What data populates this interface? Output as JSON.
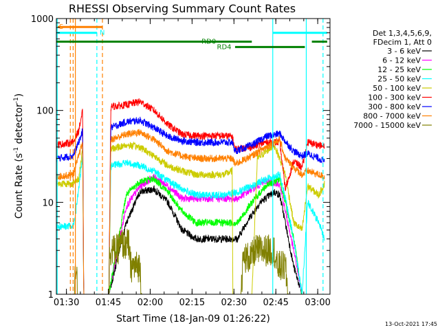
{
  "chart_data": {
    "type": "line",
    "title": "RHESSI Observing Summary Count Rates",
    "xlabel": "Start Time (18-Jan-09 01:26:22)",
    "ylabel_main": "Count Rate (s",
    "ylabel_sup1": "-1",
    "ylabel_mid": " detector",
    "ylabel_sup2": "-1",
    "ylabel_end": ")",
    "timestamp": "13-Oct-2021 17:45",
    "x_unit": "minutes after 01:26:22",
    "xlim": [
      0,
      98
    ],
    "ylim": [
      1,
      1000
    ],
    "yscale": "log",
    "x_ticks": [
      {
        "label": "01:30",
        "value": 3.6
      },
      {
        "label": "01:45",
        "value": 18.6
      },
      {
        "label": "02:00",
        "value": 33.6
      },
      {
        "label": "02:15",
        "value": 48.6
      },
      {
        "label": "02:30",
        "value": 63.6
      },
      {
        "label": "02:45",
        "value": 78.6
      },
      {
        "label": "03:00",
        "value": 93.6
      }
    ],
    "y_ticks": [
      {
        "label": "1",
        "value": 1
      },
      {
        "label": "10",
        "value": 10
      },
      {
        "label": "100",
        "value": 100
      },
      {
        "label": "1000",
        "value": 1000
      }
    ],
    "legend_header": [
      "Det 1,3,4,5,6,9,",
      "FDecim 1, Att 0"
    ],
    "series": [
      {
        "name": "3 - 6 keV",
        "color": "#000000",
        "points": [
          [
            5,
            1
          ],
          [
            6,
            1
          ],
          [
            18,
            1
          ],
          [
            18.8,
            1
          ],
          [
            25,
            6
          ],
          [
            30,
            13
          ],
          [
            35,
            14
          ],
          [
            40,
            10
          ],
          [
            45,
            5
          ],
          [
            50,
            4
          ],
          [
            55,
            4
          ],
          [
            60,
            4
          ],
          [
            65,
            4
          ],
          [
            68,
            6
          ],
          [
            73,
            10
          ],
          [
            78,
            13
          ],
          [
            80,
            12
          ],
          [
            82,
            6
          ],
          [
            85,
            2
          ],
          [
            88,
            1
          ],
          [
            92,
            1
          ],
          [
            96,
            1
          ]
        ]
      },
      {
        "name": "6 - 12 keV",
        "color": "#ff00ff",
        "points": [
          [
            5,
            1
          ],
          [
            6,
            1
          ],
          [
            18,
            1
          ],
          [
            18.8,
            1
          ],
          [
            25,
            9
          ],
          [
            30,
            15
          ],
          [
            35,
            19
          ],
          [
            40,
            15
          ],
          [
            45,
            11
          ],
          [
            50,
            11
          ],
          [
            55,
            11
          ],
          [
            60,
            11
          ],
          [
            65,
            11
          ],
          [
            70,
            14
          ],
          [
            75,
            17
          ],
          [
            80,
            16
          ],
          [
            82,
            8
          ],
          [
            85,
            3
          ],
          [
            88,
            1
          ],
          [
            92,
            1
          ],
          [
            96,
            1
          ]
        ]
      },
      {
        "name": "12 - 25 keV",
        "color": "#00ff00",
        "points": [
          [
            5,
            1
          ],
          [
            6,
            1
          ],
          [
            18,
            1
          ],
          [
            18.8,
            1
          ],
          [
            25,
            12
          ],
          [
            30,
            17
          ],
          [
            35,
            18
          ],
          [
            40,
            13
          ],
          [
            45,
            8
          ],
          [
            50,
            6
          ],
          [
            55,
            6
          ],
          [
            60,
            6
          ],
          [
            65,
            6
          ],
          [
            70,
            10
          ],
          [
            75,
            15
          ],
          [
            80,
            18
          ],
          [
            82,
            10
          ],
          [
            85,
            4
          ],
          [
            88,
            1
          ],
          [
            92,
            1
          ],
          [
            96,
            1
          ]
        ]
      },
      {
        "name": "25 - 50 keV",
        "color": "#00ffff",
        "points": [
          [
            0,
            5.5
          ],
          [
            6,
            5.5
          ],
          [
            7,
            8
          ],
          [
            8.6,
            20
          ],
          [
            9.4,
            30
          ],
          [
            9.8,
            1
          ],
          [
            18.8,
            1
          ],
          [
            19.5,
            25
          ],
          [
            25,
            27
          ],
          [
            30,
            25
          ],
          [
            35,
            22
          ],
          [
            40,
            17
          ],
          [
            45,
            14
          ],
          [
            50,
            12
          ],
          [
            55,
            12
          ],
          [
            60,
            12
          ],
          [
            65,
            13
          ],
          [
            70,
            15
          ],
          [
            75,
            18
          ],
          [
            80,
            20
          ],
          [
            82,
            11
          ],
          [
            85,
            4
          ],
          [
            88,
            1
          ],
          [
            90,
            10
          ],
          [
            94,
            6
          ],
          [
            96,
            4
          ]
        ]
      },
      {
        "name": "50 - 100 keV",
        "color": "#cccc00",
        "points": [
          [
            0,
            16
          ],
          [
            6,
            16
          ],
          [
            8,
            18
          ],
          [
            9.4,
            40
          ],
          [
            9.8,
            1
          ],
          [
            18.8,
            1
          ],
          [
            19.5,
            38
          ],
          [
            25,
            42
          ],
          [
            30,
            40
          ],
          [
            35,
            32
          ],
          [
            40,
            25
          ],
          [
            45,
            22
          ],
          [
            50,
            20
          ],
          [
            55,
            20
          ],
          [
            60,
            20
          ],
          [
            63,
            22
          ],
          [
            63.2,
            1
          ],
          [
            70,
            1
          ],
          [
            72,
            30
          ],
          [
            78,
            42
          ],
          [
            80,
            30
          ],
          [
            82,
            20
          ],
          [
            85,
            6
          ],
          [
            88,
            5
          ],
          [
            90,
            15
          ],
          [
            94,
            12
          ],
          [
            96,
            16
          ]
        ]
      },
      {
        "name": "100 - 300 keV",
        "color": "#ff0000",
        "points": [
          [
            0,
            42
          ],
          [
            6,
            45
          ],
          [
            8,
            60
          ],
          [
            9.4,
            100
          ],
          [
            9.8,
            1
          ],
          [
            18.8,
            1
          ],
          [
            19.5,
            110
          ],
          [
            25,
            115
          ],
          [
            30,
            125
          ],
          [
            35,
            100
          ],
          [
            40,
            70
          ],
          [
            45,
            55
          ],
          [
            50,
            53
          ],
          [
            55,
            53
          ],
          [
            60,
            53
          ],
          [
            63,
            52
          ],
          [
            64,
            38
          ],
          [
            70,
            40
          ],
          [
            75,
            45
          ],
          [
            80,
            45
          ],
          [
            82,
            14
          ],
          [
            85,
            28
          ],
          [
            88,
            24
          ],
          [
            90,
            45
          ],
          [
            94,
            42
          ],
          [
            96,
            40
          ]
        ]
      },
      {
        "name": "300 - 800 keV",
        "color": "#0000ff",
        "points": [
          [
            0,
            30
          ],
          [
            6,
            32
          ],
          [
            8,
            45
          ],
          [
            9.4,
            60
          ],
          [
            9.8,
            1
          ],
          [
            18.8,
            1
          ],
          [
            19.5,
            65
          ],
          [
            25,
            75
          ],
          [
            30,
            78
          ],
          [
            35,
            65
          ],
          [
            40,
            52
          ],
          [
            45,
            47
          ],
          [
            50,
            45
          ],
          [
            55,
            45
          ],
          [
            60,
            45
          ],
          [
            63,
            45
          ],
          [
            64,
            36
          ],
          [
            70,
            42
          ],
          [
            75,
            52
          ],
          [
            80,
            56
          ],
          [
            82,
            46
          ],
          [
            85,
            36
          ],
          [
            88,
            32
          ],
          [
            90,
            34
          ],
          [
            94,
            30
          ],
          [
            96,
            28
          ]
        ]
      },
      {
        "name": "800 - 7000 keV",
        "color": "#ff8000",
        "points": [
          [
            0,
            19
          ],
          [
            6,
            20
          ],
          [
            8,
            32
          ],
          [
            9.4,
            45
          ],
          [
            9.8,
            1
          ],
          [
            18.8,
            1
          ],
          [
            19.5,
            48
          ],
          [
            25,
            55
          ],
          [
            30,
            58
          ],
          [
            35,
            48
          ],
          [
            40,
            36
          ],
          [
            45,
            32
          ],
          [
            50,
            30
          ],
          [
            55,
            30
          ],
          [
            60,
            30
          ],
          [
            63,
            30
          ],
          [
            64,
            26
          ],
          [
            70,
            32
          ],
          [
            75,
            40
          ],
          [
            80,
            48
          ],
          [
            82,
            30
          ],
          [
            85,
            24
          ],
          [
            88,
            20
          ],
          [
            90,
            22
          ],
          [
            94,
            20
          ],
          [
            96,
            19
          ]
        ]
      },
      {
        "name": "7000 - 15000 keV",
        "color": "#808000",
        "points": [
          [
            0,
            1
          ],
          [
            6.5,
            1
          ],
          [
            6.7,
            2
          ],
          [
            7.3,
            2
          ],
          [
            7.5,
            1
          ],
          [
            18.8,
            1
          ],
          [
            19,
            3
          ],
          [
            22,
            3
          ],
          [
            22.5,
            3.5
          ],
          [
            26,
            3.5
          ],
          [
            26.5,
            2
          ],
          [
            30,
            2
          ],
          [
            30.5,
            1
          ],
          [
            60,
            1
          ],
          [
            66,
            1
          ],
          [
            67,
            2.5
          ],
          [
            70,
            2.5
          ],
          [
            71,
            3
          ],
          [
            78,
            3
          ],
          [
            79,
            2
          ],
          [
            82,
            2
          ],
          [
            83,
            1
          ],
          [
            86,
            1
          ],
          [
            96,
            1
          ]
        ]
      }
    ],
    "segments": [
      {
        "label": "S",
        "color": "#ff8000",
        "x_start": 0.5,
        "x_end": 16.5,
        "y": 810,
        "label_x": 1.0
      },
      {
        "label": "N",
        "color": "#00ffff",
        "x_start": 0,
        "x_end": 14.5,
        "y": 700,
        "label_x": 15.5
      },
      {
        "label": "N",
        "color": "#00ffff",
        "x_start": 77.5,
        "x_end": 97,
        "y": 700,
        "label_x": null
      },
      {
        "label": "RD0",
        "color": "#008000",
        "x_start": 0,
        "x_end": 70,
        "y": 560,
        "label_x": 52
      },
      {
        "label": "RD0",
        "color": "#008000",
        "x_start": 91.5,
        "x_end": 97,
        "y": 560,
        "label_x": null
      },
      {
        "label": "RD4",
        "color": "#008000",
        "x_start": 64,
        "x_end": 89,
        "y": 490,
        "label_x": 57.5
      }
    ],
    "vlines": [
      {
        "x": 5.0,
        "color": "#ff8000",
        "dash": true
      },
      {
        "x": 6.0,
        "color": "#ff8000",
        "dash": true
      },
      {
        "x": 16.5,
        "color": "#ff8000",
        "dash": true
      },
      {
        "x": 6.8,
        "color": "#ff8000",
        "dash": false
      },
      {
        "x": 14.5,
        "color": "#00ffff",
        "dash": true
      },
      {
        "x": 95.5,
        "color": "#00ffff",
        "dash": true
      },
      {
        "x": 77.5,
        "color": "#00ffff",
        "dash": false
      },
      {
        "x": 89.5,
        "color": "#00ffff",
        "dash": false
      },
      {
        "x": 0.3,
        "color": "#00ffff",
        "dash": false
      }
    ]
  }
}
